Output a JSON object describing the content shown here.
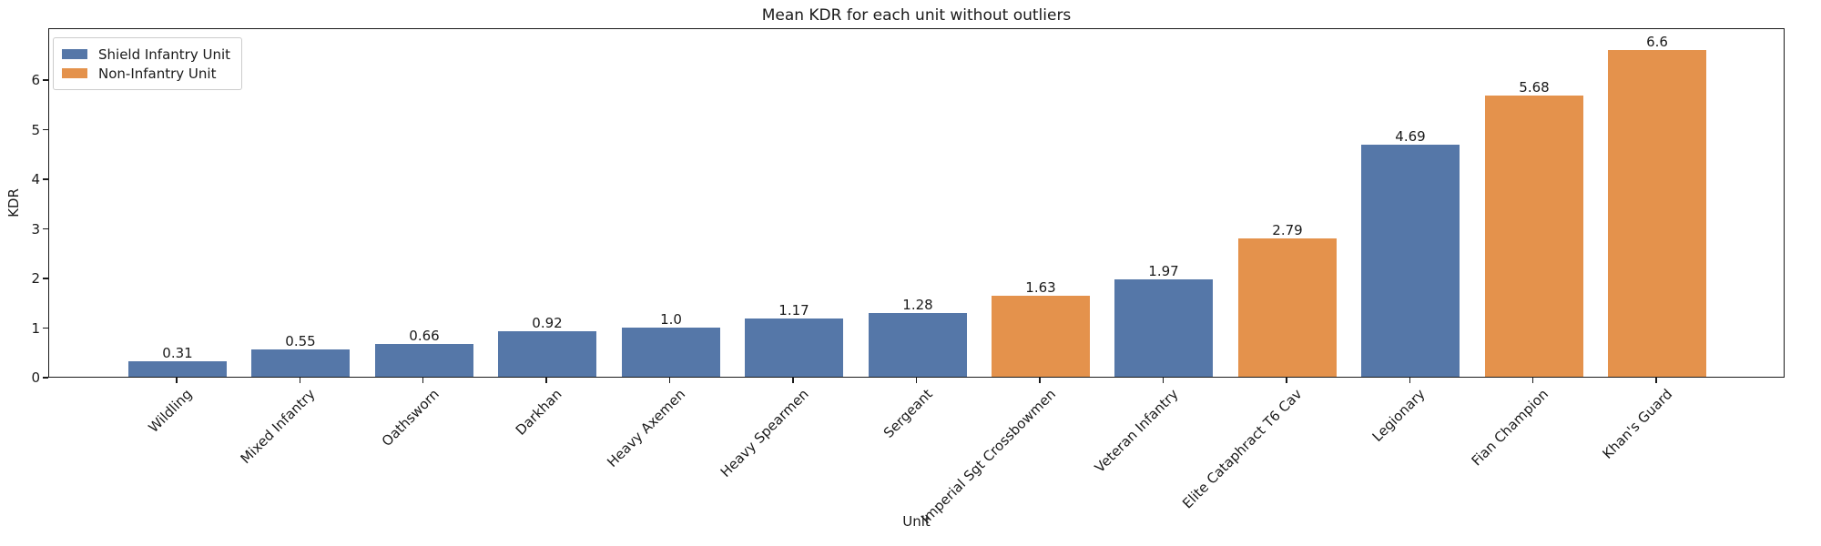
{
  "chart_data": {
    "type": "bar",
    "title": "Mean KDR for each unit without outliers",
    "xlabel": "Unit",
    "ylabel": "KDR",
    "ylim": [
      0,
      7.05
    ],
    "yticks": [
      0,
      1,
      2,
      3,
      4,
      5,
      6
    ],
    "grid": false,
    "legend_position": "upper left",
    "categories": [
      "Wildling",
      "Mixed Infantry",
      "Oathsworn",
      "Darkhan",
      "Heavy Axemen",
      "Heavy Spearmen",
      "Sergeant",
      "Imperial Sgt Crossbowmen",
      "Veteran Infantry",
      "Elite Cataphract T6 Cav",
      "Legionary",
      "Fian Champion",
      "Khan's Guard"
    ],
    "values": [
      0.31,
      0.55,
      0.66,
      0.92,
      1.0,
      1.17,
      1.28,
      1.63,
      1.97,
      2.79,
      4.69,
      5.68,
      6.6
    ],
    "bar_labels": [
      "0.31",
      "0.55",
      "0.66",
      "0.92",
      "1.0",
      "1.17",
      "1.28",
      "1.63",
      "1.97",
      "2.79",
      "4.69",
      "5.68",
      "6.6"
    ],
    "bar_groups": [
      "Shield Infantry Unit",
      "Shield Infantry Unit",
      "Shield Infantry Unit",
      "Shield Infantry Unit",
      "Shield Infantry Unit",
      "Shield Infantry Unit",
      "Shield Infantry Unit",
      "Non-Infantry Unit",
      "Shield Infantry Unit",
      "Non-Infantry Unit",
      "Shield Infantry Unit",
      "Non-Infantry Unit",
      "Non-Infantry Unit"
    ],
    "legend": [
      {
        "label": "Shield Infantry Unit",
        "color": "#5577A8"
      },
      {
        "label": "Non-Infantry Unit",
        "color": "#E4924C"
      }
    ]
  }
}
